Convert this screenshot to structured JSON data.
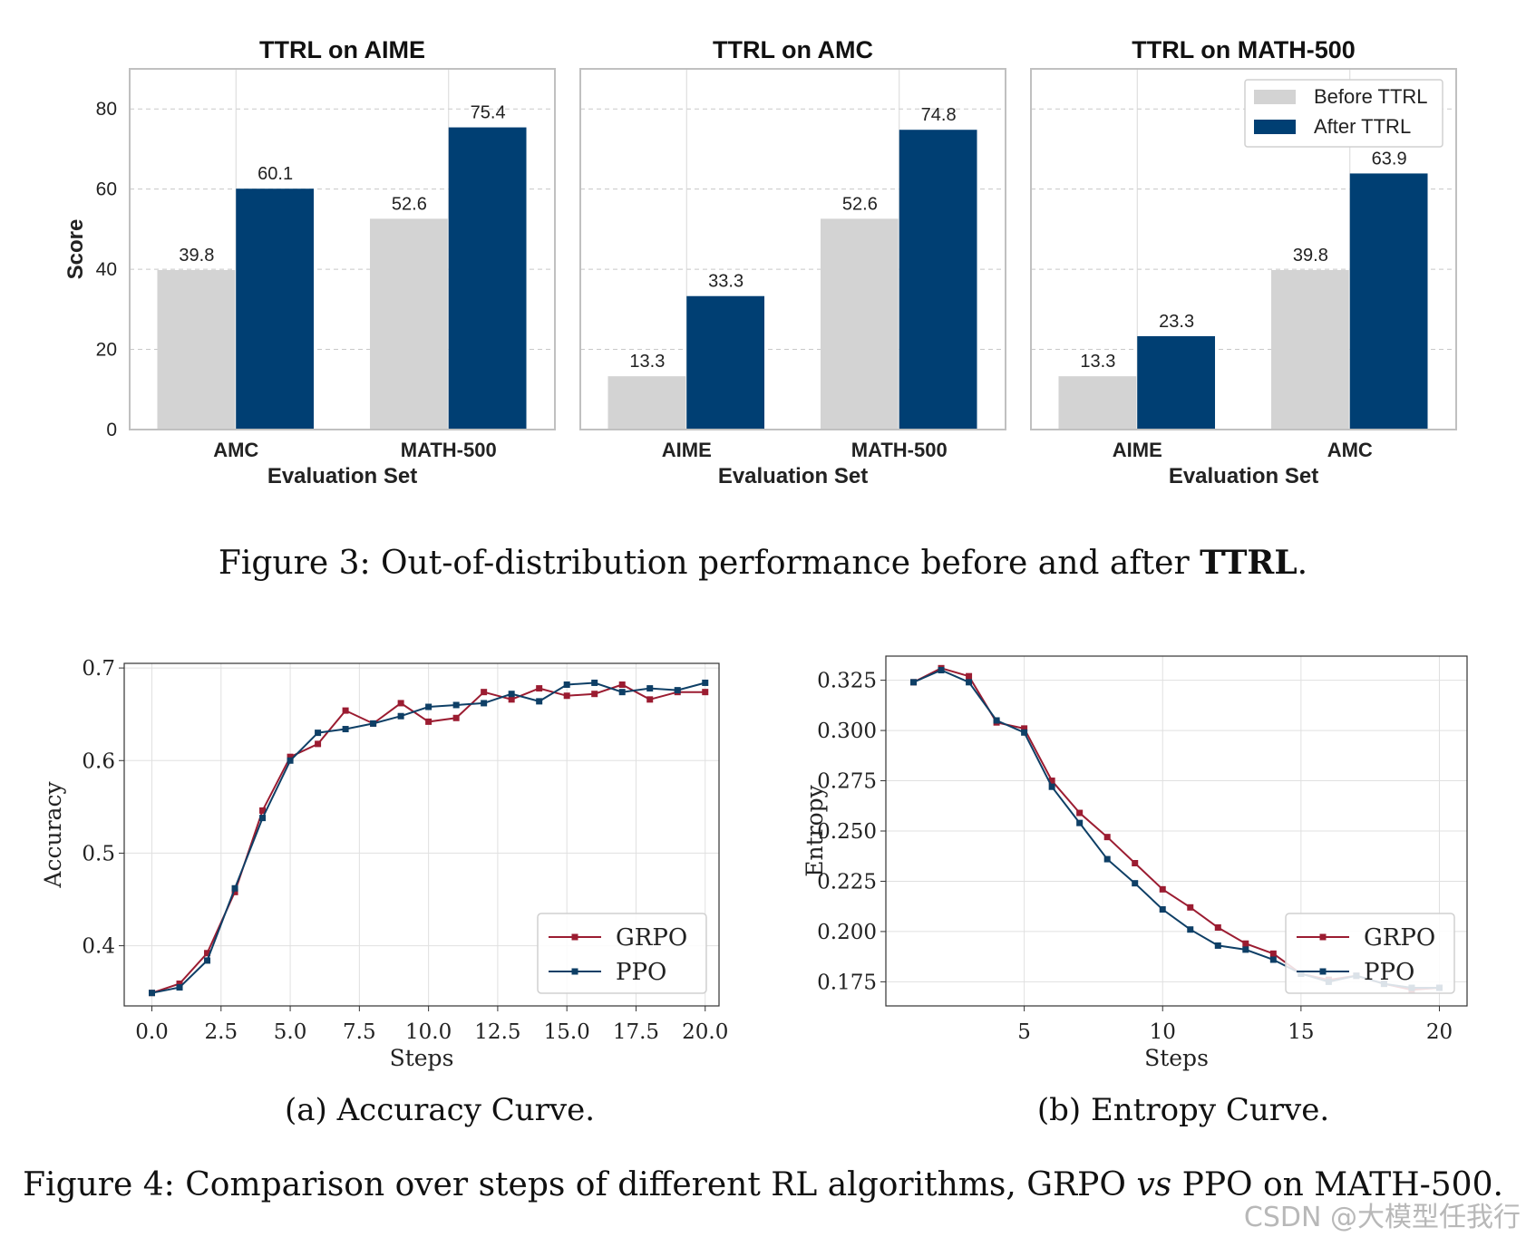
{
  "captions": {
    "fig3_prefix": "Figure 3: Out-of-distribution performance before and after ",
    "fig3_bold": "TTRL",
    "fig3_suffix": ".",
    "fig4a": "(a) Accuracy Curve.",
    "fig4b": "(b) Entropy Curve.",
    "fig4_prefix": "Figure 4: Comparison over steps of different RL algorithms, GRPO ",
    "fig4_italic": "vs",
    "fig4_suffix": " PPO on MATH-500."
  },
  "watermark": "CSDN @大模型任我行",
  "colors": {
    "before": "#d3d3d3",
    "after": "#003f73",
    "grpo": "#9b1c31",
    "ppo": "#0e3f66",
    "grid": "#cccccc"
  },
  "chart_data": [
    {
      "type": "bar",
      "title": "TTRL on AIME",
      "xlabel": "Evaluation Set",
      "ylabel": "Score",
      "ylim": [
        0,
        90
      ],
      "yticks": [
        0,
        20,
        40,
        60,
        80
      ],
      "categories": [
        "AMC",
        "MATH-500"
      ],
      "series": [
        {
          "name": "Before TTRL",
          "values": [
            39.8,
            52.6
          ]
        },
        {
          "name": "After TTRL",
          "values": [
            60.1,
            75.4
          ]
        }
      ],
      "data_labels": [
        [
          "39.8",
          "52.6"
        ],
        [
          "60.1",
          "75.4"
        ]
      ],
      "legend": false
    },
    {
      "type": "bar",
      "title": "TTRL on AMC",
      "xlabel": "Evaluation Set",
      "ylabel": "",
      "ylim": [
        0,
        90
      ],
      "yticks": [
        0,
        20,
        40,
        60,
        80
      ],
      "categories": [
        "AIME",
        "MATH-500"
      ],
      "series": [
        {
          "name": "Before TTRL",
          "values": [
            13.3,
            52.6
          ]
        },
        {
          "name": "After TTRL",
          "values": [
            33.3,
            74.8
          ]
        }
      ],
      "data_labels": [
        [
          "13.3",
          "52.6"
        ],
        [
          "33.3",
          "74.8"
        ]
      ],
      "legend": false
    },
    {
      "type": "bar",
      "title": "TTRL on MATH-500",
      "xlabel": "Evaluation Set",
      "ylabel": "",
      "ylim": [
        0,
        90
      ],
      "yticks": [
        0,
        20,
        40,
        60,
        80
      ],
      "categories": [
        "AIME",
        "AMC"
      ],
      "series": [
        {
          "name": "Before TTRL",
          "values": [
            13.3,
            39.8
          ]
        },
        {
          "name": "After TTRL",
          "values": [
            23.3,
            63.9
          ]
        }
      ],
      "data_labels": [
        [
          "13.3",
          "39.8"
        ],
        [
          "23.3",
          "63.9"
        ]
      ],
      "legend": "top-right"
    },
    {
      "type": "line",
      "title": "",
      "xlabel": "Steps",
      "ylabel": "Accuracy",
      "xlim": [
        -1,
        20.5
      ],
      "ylim": [
        0.335,
        0.705
      ],
      "xticks": [
        "0.0",
        "2.5",
        "5.0",
        "7.5",
        "10.0",
        "12.5",
        "15.0",
        "17.5",
        "20.0"
      ],
      "yticks": [
        "0.4",
        "0.5",
        "0.6",
        "0.7"
      ],
      "x": [
        0,
        1,
        2,
        3,
        4,
        5,
        6,
        7,
        8,
        9,
        10,
        11,
        12,
        13,
        14,
        15,
        16,
        17,
        18,
        19,
        20
      ],
      "series": [
        {
          "name": "GRPO",
          "values": [
            0.349,
            0.359,
            0.392,
            0.458,
            0.546,
            0.604,
            0.618,
            0.654,
            0.64,
            0.662,
            0.642,
            0.646,
            0.674,
            0.666,
            0.678,
            0.67,
            0.672,
            0.682,
            0.666,
            0.674,
            0.674
          ]
        },
        {
          "name": "PPO",
          "values": [
            0.349,
            0.355,
            0.384,
            0.462,
            0.538,
            0.6,
            0.63,
            0.634,
            0.64,
            0.648,
            0.658,
            0.66,
            0.662,
            0.672,
            0.664,
            0.682,
            0.684,
            0.674,
            0.678,
            0.676,
            0.684
          ]
        }
      ],
      "legend": "bottom-right",
      "grid": true
    },
    {
      "type": "line",
      "title": "",
      "xlabel": "Steps",
      "ylabel": "Entropy",
      "xlim": [
        0,
        21
      ],
      "ylim": [
        0.163,
        0.337
      ],
      "xticks": [
        "5",
        "10",
        "15",
        "20"
      ],
      "yticks": [
        "0.175",
        "0.200",
        "0.225",
        "0.250",
        "0.275",
        "0.300",
        "0.325"
      ],
      "x": [
        1,
        2,
        3,
        4,
        5,
        6,
        7,
        8,
        9,
        10,
        11,
        12,
        13,
        14,
        15,
        16,
        17,
        18,
        19,
        20
      ],
      "series": [
        {
          "name": "GRPO",
          "values": [
            0.324,
            0.331,
            0.327,
            0.304,
            0.301,
            0.275,
            0.259,
            0.247,
            0.234,
            0.221,
            0.212,
            0.202,
            0.194,
            0.189,
            0.179,
            0.176,
            0.178,
            0.174,
            0.171,
            0.172
          ]
        },
        {
          "name": "PPO",
          "values": [
            0.324,
            0.33,
            0.324,
            0.305,
            0.299,
            0.272,
            0.254,
            0.236,
            0.224,
            0.211,
            0.201,
            0.193,
            0.191,
            0.186,
            0.179,
            0.175,
            0.178,
            0.174,
            0.172,
            0.172
          ]
        }
      ],
      "legend": "bottom-right",
      "grid": true
    }
  ]
}
